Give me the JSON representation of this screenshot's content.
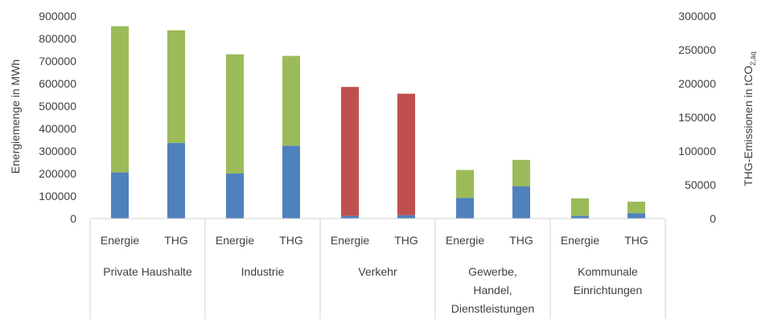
{
  "chart_data": {
    "type": "bar",
    "stacked": true,
    "ylabel_left": "Energiemenge in MWh",
    "ylabel_right_prefix": "THG-Emissionen in tCO",
    "ylabel_right_sub": "2,äq",
    "ylim_left": [
      0,
      900000
    ],
    "ylim_right": [
      0,
      300000
    ],
    "left_ticks": [
      "0",
      "100000",
      "200000",
      "300000",
      "400000",
      "500000",
      "600000",
      "700000",
      "800000",
      "900000"
    ],
    "right_ticks": [
      "0",
      "50000",
      "100000",
      "150000",
      "200000",
      "250000",
      "300000"
    ],
    "grid": false,
    "legend": "none",
    "colors": {
      "electric": "#4f81bd",
      "heat": "#9bbb59",
      "fuel": "#c0504d"
    },
    "groups": [
      {
        "name_lines": [
          "Private Haushalte"
        ]
      },
      {
        "name_lines": [
          "Industrie"
        ]
      },
      {
        "name_lines": [
          "Verkehr"
        ]
      },
      {
        "name_lines": [
          "Gewerbe,",
          "Handel,",
          "Dienstleistungen"
        ]
      },
      {
        "name_lines": [
          "Kommunale",
          "Einrichtungen"
        ]
      }
    ],
    "sub_labels": [
      "Energie",
      "THG"
    ],
    "bars": [
      {
        "group": 0,
        "label": "Energie",
        "axis": "left",
        "segments": [
          {
            "color": "electric",
            "value": 205000
          },
          {
            "color": "heat",
            "value": 650000
          }
        ]
      },
      {
        "group": 0,
        "label": "THG",
        "axis": "right",
        "segments": [
          {
            "color": "electric",
            "value": 112000
          },
          {
            "color": "heat",
            "value": 167000
          }
        ]
      },
      {
        "group": 1,
        "label": "Energie",
        "axis": "left",
        "segments": [
          {
            "color": "electric",
            "value": 200000
          },
          {
            "color": "heat",
            "value": 530000
          }
        ]
      },
      {
        "group": 1,
        "label": "THG",
        "axis": "right",
        "segments": [
          {
            "color": "electric",
            "value": 108000
          },
          {
            "color": "heat",
            "value": 133000
          }
        ]
      },
      {
        "group": 2,
        "label": "Energie",
        "axis": "left",
        "segments": [
          {
            "color": "electric",
            "value": 12000
          },
          {
            "color": "fuel",
            "value": 573000
          }
        ]
      },
      {
        "group": 2,
        "label": "THG",
        "axis": "right",
        "segments": [
          {
            "color": "electric",
            "value": 5000
          },
          {
            "color": "fuel",
            "value": 180000
          }
        ]
      },
      {
        "group": 3,
        "label": "Energie",
        "axis": "left",
        "segments": [
          {
            "color": "electric",
            "value": 92000
          },
          {
            "color": "heat",
            "value": 124000
          }
        ]
      },
      {
        "group": 3,
        "label": "THG",
        "axis": "right",
        "segments": [
          {
            "color": "electric",
            "value": 48000
          },
          {
            "color": "heat",
            "value": 39000
          }
        ]
      },
      {
        "group": 4,
        "label": "Energie",
        "axis": "left",
        "segments": [
          {
            "color": "electric",
            "value": 12000
          },
          {
            "color": "heat",
            "value": 78000
          }
        ]
      },
      {
        "group": 4,
        "label": "THG",
        "axis": "right",
        "segments": [
          {
            "color": "electric",
            "value": 8000
          },
          {
            "color": "heat",
            "value": 17000
          }
        ]
      }
    ]
  }
}
